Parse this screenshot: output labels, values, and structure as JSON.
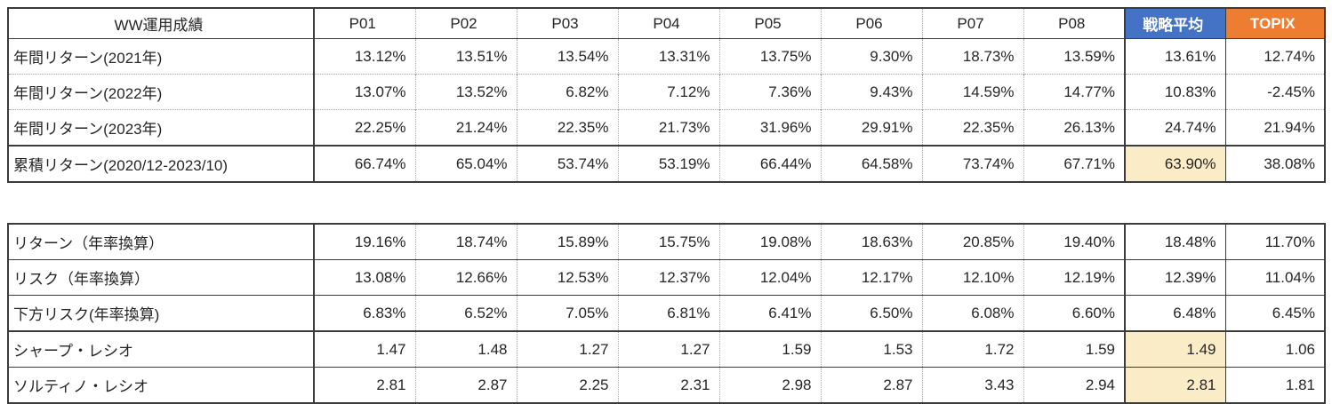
{
  "colors": {
    "strategy_header_bg": "#4472C4",
    "topix_header_bg": "#ED7D31",
    "highlight_bg": "#FBECC8",
    "border_dark": "#3b3b3b",
    "text": "#262626"
  },
  "columns": [
    "P01",
    "P02",
    "P03",
    "P04",
    "P05",
    "P06",
    "P07",
    "P08",
    "戦略平均",
    "TOPIX"
  ],
  "table1": {
    "corner_label": "WW運用成績",
    "rows": [
      {
        "label": "年間リターン(2021年)",
        "values": [
          "13.12%",
          "13.51%",
          "13.54%",
          "13.31%",
          "13.75%",
          "9.30%",
          "18.73%",
          "13.59%",
          "13.61%",
          "12.74%"
        ],
        "highlight_strategy": false
      },
      {
        "label": "年間リターン(2022年)",
        "values": [
          "13.07%",
          "13.52%",
          "6.82%",
          "7.12%",
          "7.36%",
          "9.43%",
          "14.59%",
          "14.77%",
          "10.83%",
          "-2.45%"
        ],
        "highlight_strategy": false
      },
      {
        "label": "年間リターン(2023年)",
        "values": [
          "22.25%",
          "21.24%",
          "22.35%",
          "21.73%",
          "31.96%",
          "29.91%",
          "22.35%",
          "26.13%",
          "24.74%",
          "21.94%"
        ],
        "highlight_strategy": false
      },
      {
        "label": "累積リターン(2020/12-2023/10)",
        "values": [
          "66.74%",
          "65.04%",
          "53.74%",
          "53.19%",
          "66.44%",
          "64.58%",
          "73.74%",
          "67.71%",
          "63.90%",
          "38.08%"
        ],
        "highlight_strategy": true
      }
    ]
  },
  "table2": {
    "rows": [
      {
        "label": "リターン（年率換算）",
        "values": [
          "19.16%",
          "18.74%",
          "15.89%",
          "15.75%",
          "19.08%",
          "18.63%",
          "20.85%",
          "19.40%",
          "18.48%",
          "11.70%"
        ],
        "highlight_strategy": false
      },
      {
        "label": "リスク（年率換算）",
        "values": [
          "13.08%",
          "12.66%",
          "12.53%",
          "12.37%",
          "12.04%",
          "12.17%",
          "12.10%",
          "12.19%",
          "12.39%",
          "11.04%"
        ],
        "highlight_strategy": false
      },
      {
        "label": "下方リスク(年率換算)",
        "values": [
          "6.83%",
          "6.52%",
          "7.05%",
          "6.81%",
          "6.41%",
          "6.50%",
          "6.08%",
          "6.60%",
          "6.48%",
          "6.45%"
        ],
        "highlight_strategy": false
      },
      {
        "label": "シャープ・レシオ",
        "values": [
          "1.47",
          "1.48",
          "1.27",
          "1.27",
          "1.59",
          "1.53",
          "1.72",
          "1.59",
          "1.49",
          "1.06"
        ],
        "highlight_strategy": true
      },
      {
        "label": "ソルティノ・レシオ",
        "values": [
          "2.81",
          "2.87",
          "2.25",
          "2.31",
          "2.98",
          "2.87",
          "3.43",
          "2.94",
          "2.81",
          "1.81"
        ],
        "highlight_strategy": true
      }
    ]
  }
}
